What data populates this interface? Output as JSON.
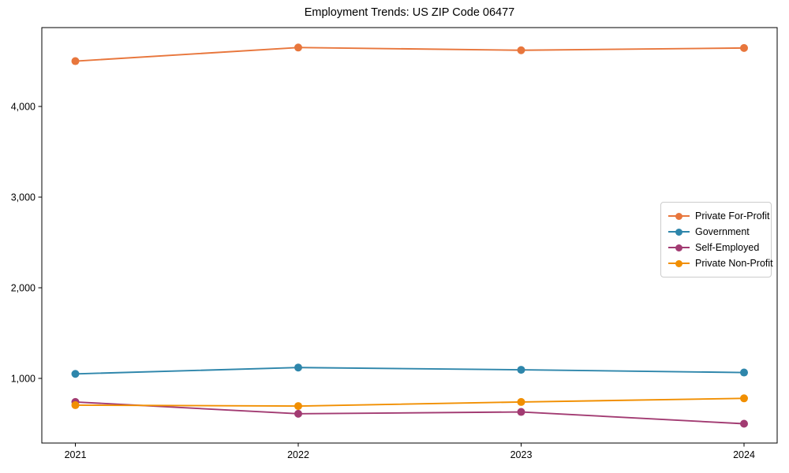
{
  "chart_data": {
    "type": "line",
    "title": "Employment Trends: US ZIP Code 06477",
    "categories": [
      "2021",
      "2022",
      "2023",
      "2024"
    ],
    "series": [
      {
        "name": "Private For-Profit",
        "color": "#E8763C",
        "values": [
          4500,
          4650,
          4620,
          4645
        ]
      },
      {
        "name": "Government",
        "color": "#2E86AB",
        "values": [
          1050,
          1120,
          1095,
          1065
        ]
      },
      {
        "name": "Self-Employed",
        "color": "#A23B72",
        "values": [
          740,
          610,
          630,
          500
        ]
      },
      {
        "name": "Private Non-Profit",
        "color": "#F18F01",
        "values": [
          705,
          695,
          740,
          780
        ]
      }
    ],
    "xlabel": "",
    "ylabel": "",
    "ylim": [
      287,
      4870
    ],
    "yticks": {
      "values": [
        1000,
        2000,
        3000,
        4000
      ],
      "labels": [
        "1,000",
        "2,000",
        "3,000",
        "4,000"
      ]
    },
    "xticks": [
      "2021",
      "2022",
      "2023",
      "2024"
    ],
    "grid": false,
    "legend_position": "right-center",
    "marker": "circle",
    "axis_color": "#000000",
    "text_color": "#000000",
    "background": "#ffffff"
  }
}
